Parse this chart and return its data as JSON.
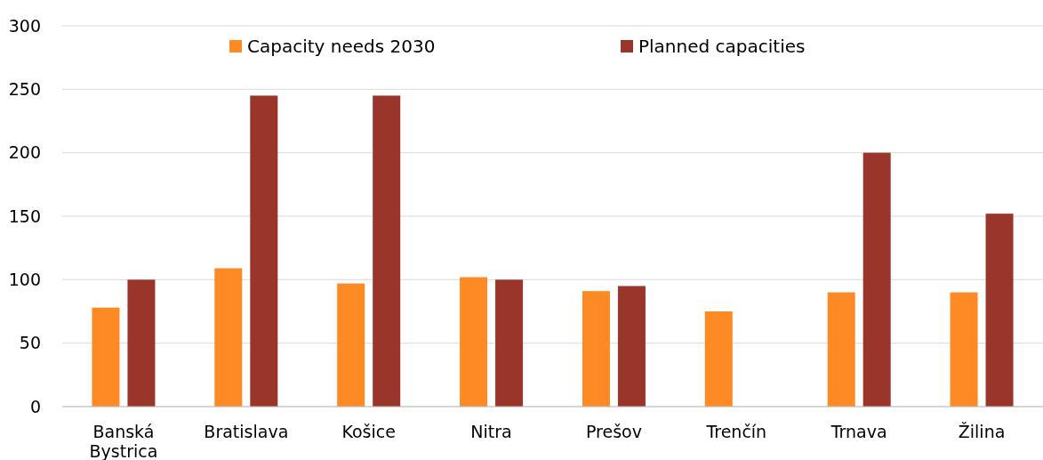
{
  "chart_data": {
    "type": "bar",
    "categories": [
      "Banská Bystrica",
      "Bratislava",
      "Košice",
      "Nitra",
      "Prešov",
      "Trenčín",
      "Trnava",
      "Žilina"
    ],
    "series": [
      {
        "name": "Capacity needs 2030",
        "color": "#fd8a24",
        "values": [
          78,
          109,
          97,
          102,
          91,
          75,
          90,
          90
        ]
      },
      {
        "name": "Planned capacities",
        "color": "#9a352b",
        "values": [
          100,
          245,
          245,
          100,
          95,
          null,
          200,
          152
        ]
      }
    ],
    "ylim": [
      0,
      300
    ],
    "yticks": [
      0,
      50,
      100,
      150,
      200,
      250,
      300
    ],
    "grid": "y",
    "legend": "top"
  }
}
